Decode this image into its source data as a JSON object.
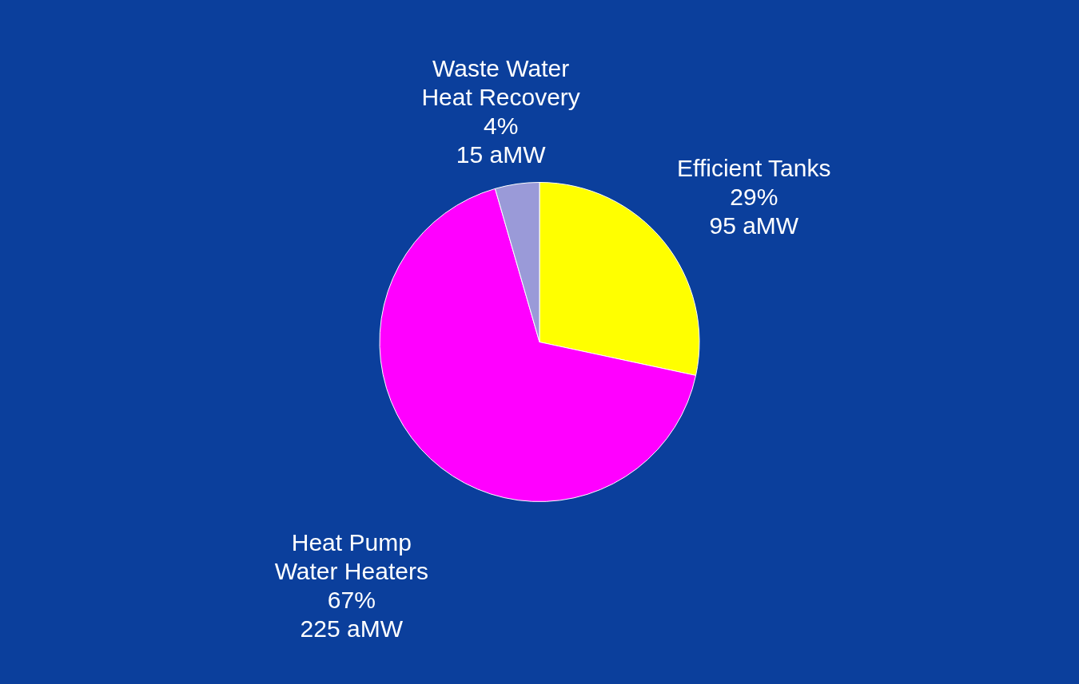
{
  "chart_data": {
    "type": "pie",
    "categories": [
      "Efficient Tanks",
      "Heat Pump\nWater Heaters",
      "Waste Water\nHeat Recovery"
    ],
    "values": [
      95,
      225,
      15
    ],
    "colors": [
      "#ffff00",
      "#ff00ff",
      "#9a9ad8"
    ],
    "value_labels": [
      "29%\n95 aMW",
      "67%\n225 aMW",
      "4%\n15 aMW"
    ],
    "legend": false
  }
}
